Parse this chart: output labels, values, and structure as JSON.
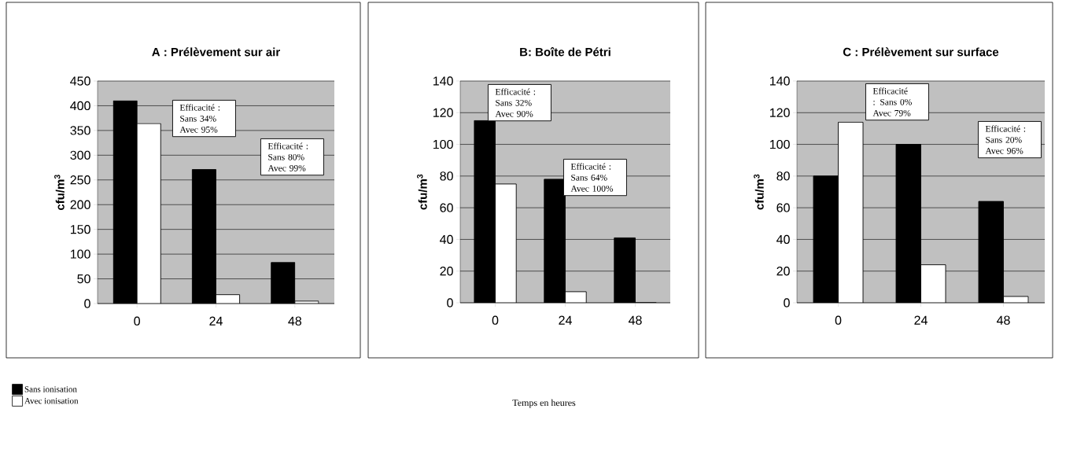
{
  "chart_data": [
    {
      "type": "bar",
      "title": "A : Prélèvement sur air",
      "ylabel": "cfu/m$^{3}$",
      "categories": [
        "0",
        "24",
        "48"
      ],
      "series": [
        {
          "name": "Sans ionisation",
          "color": "#000000",
          "values": [
            410,
            271,
            83
          ]
        },
        {
          "name": "Avec ionisation",
          "color": "#ffffff",
          "values": [
            364,
            18,
            5
          ]
        }
      ],
      "ylim": [
        0,
        450
      ],
      "yticks": [
        0,
        50,
        100,
        150,
        200,
        250,
        300,
        350,
        400,
        450
      ],
      "grid": "y",
      "legend": "bottom left",
      "annotations": [
        "Efficacité : Sans 34% Avec 95%",
        "Efficacité : Sans 80% Avec 99%"
      ]
    },
    {
      "type": "bar",
      "title": "B: Boîte de Pétri",
      "ylabel": "cfu/m$^{3}$",
      "xlabel": "Temps en heures",
      "categories": [
        "0",
        "24",
        "48"
      ],
      "series": [
        {
          "color": "#000000",
          "values": [
            115,
            78,
            41
          ]
        },
        {
          "color": "#ffffff",
          "values": [
            75,
            7,
            0
          ]
        }
      ],
      "ylim": [
        0,
        140
      ],
      "yticks": [
        0,
        20,
        40,
        60,
        80,
        100,
        120,
        140
      ],
      "grid": "y",
      "annotations": [
        "Efficacité : Sans 32% Avec 90%",
        "Efficacité : Sans 64% Avec 100%"
      ]
    },
    {
      "type": "bar",
      "title": "C : Prélèvement sur surface",
      "ylabel": "cfu/m$^{3}$",
      "categories": [
        "0",
        "24",
        "48"
      ],
      "series": [
        {
          "color": "#000000",
          "values": [
            80,
            100,
            64
          ]
        },
        {
          "color": "#ffffff",
          "values": [
            114,
            24,
            4
          ]
        }
      ],
      "ylim": [
        0,
        140
      ],
      "yticks": [
        0,
        20,
        40,
        60,
        80,
        100,
        120,
        140
      ],
      "grid": "y",
      "annotations": [
        "Efficacité : Sans 0% Avec 79%",
        "Efficacité : Sans 20% Avec 96%"
      ]
    }
  ]
}
